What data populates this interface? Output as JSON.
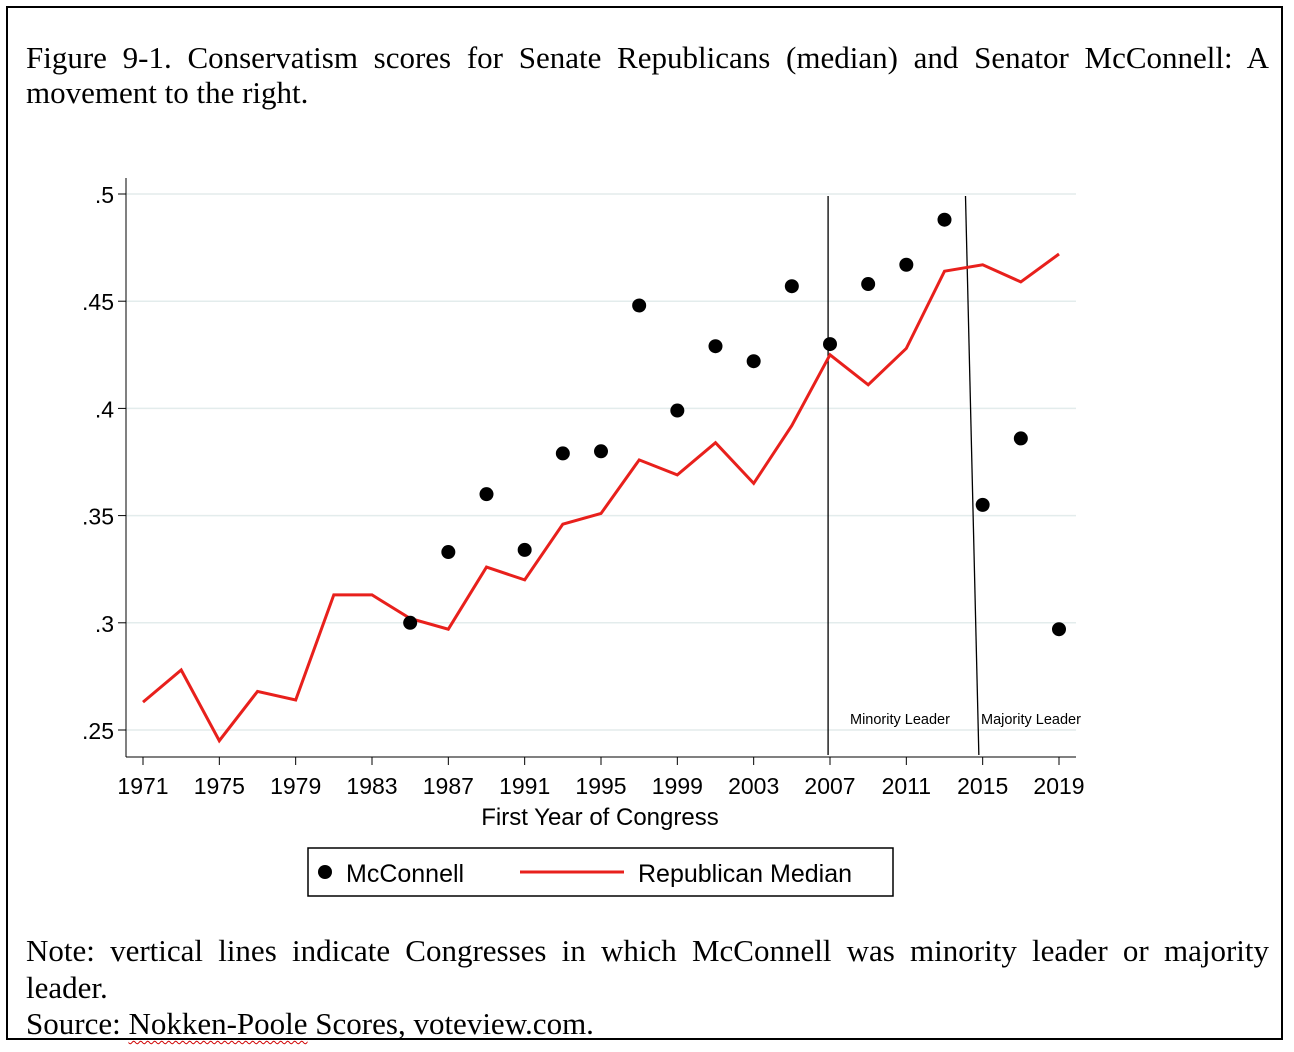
{
  "figure": {
    "caption": "Figure 9-1. Conservatism scores for Senate Republicans (median) and Senator McConnell: A movement to the right.",
    "note": "Note: vertical lines indicate Congresses in which McConnell was minority leader or majority leader.",
    "source_prefix": "Source: ",
    "source_link": "Nokken-Poole",
    "source_suffix": " Scores, voteview.com."
  },
  "chart_data": {
    "type": "scatter",
    "xlabel": "First Year of Congress",
    "ylabel": "",
    "xlim": [
      1971,
      2019
    ],
    "ylim": [
      0.25,
      0.5
    ],
    "x_ticks": [
      {
        "value": 1971,
        "label": "1971"
      },
      {
        "value": 1975,
        "label": "1975"
      },
      {
        "value": 1979,
        "label": "1979"
      },
      {
        "value": 1983,
        "label": "1983"
      },
      {
        "value": 1987,
        "label": "1987"
      },
      {
        "value": 1991,
        "label": "1991"
      },
      {
        "value": 1995,
        "label": "1995"
      },
      {
        "value": 1999,
        "label": "1999"
      },
      {
        "value": 2003,
        "label": "2003"
      },
      {
        "value": 2007,
        "label": "2007"
      },
      {
        "value": 2011,
        "label": "2011"
      },
      {
        "value": 2015,
        "label": "2015"
      },
      {
        "value": 2019,
        "label": "2019"
      }
    ],
    "y_ticks": [
      {
        "value": 0.25,
        "label": ".25"
      },
      {
        "value": 0.3,
        "label": ".3"
      },
      {
        "value": 0.35,
        "label": ".35"
      },
      {
        "value": 0.4,
        "label": ".4"
      },
      {
        "value": 0.45,
        "label": ".45"
      },
      {
        "value": 0.5,
        "label": ".5"
      }
    ],
    "grid": true,
    "legend_position": "bottom",
    "series": [
      {
        "name": "McConnell",
        "kind": "scatter",
        "color": "#000000",
        "points": [
          {
            "x": 1985,
            "y": 0.3
          },
          {
            "x": 1987,
            "y": 0.333
          },
          {
            "x": 1989,
            "y": 0.36
          },
          {
            "x": 1991,
            "y": 0.334
          },
          {
            "x": 1993,
            "y": 0.379
          },
          {
            "x": 1995,
            "y": 0.38
          },
          {
            "x": 1997,
            "y": 0.448
          },
          {
            "x": 1999,
            "y": 0.399
          },
          {
            "x": 2001,
            "y": 0.429
          },
          {
            "x": 2003,
            "y": 0.422
          },
          {
            "x": 2005,
            "y": 0.457
          },
          {
            "x": 2007,
            "y": 0.43
          },
          {
            "x": 2009,
            "y": 0.458
          },
          {
            "x": 2011,
            "y": 0.467
          },
          {
            "x": 2013,
            "y": 0.488
          },
          {
            "x": 2015,
            "y": 0.355
          },
          {
            "x": 2017,
            "y": 0.386
          },
          {
            "x": 2019,
            "y": 0.297
          }
        ]
      },
      {
        "name": "Republican Median",
        "kind": "line",
        "color": "#e8201c",
        "points": [
          {
            "x": 1971,
            "y": 0.263
          },
          {
            "x": 1973,
            "y": 0.278
          },
          {
            "x": 1975,
            "y": 0.245
          },
          {
            "x": 1977,
            "y": 0.268
          },
          {
            "x": 1979,
            "y": 0.264
          },
          {
            "x": 1981,
            "y": 0.313
          },
          {
            "x": 1983,
            "y": 0.313
          },
          {
            "x": 1985,
            "y": 0.302
          },
          {
            "x": 1987,
            "y": 0.297
          },
          {
            "x": 1989,
            "y": 0.326
          },
          {
            "x": 1991,
            "y": 0.32
          },
          {
            "x": 1993,
            "y": 0.346
          },
          {
            "x": 1995,
            "y": 0.351
          },
          {
            "x": 1997,
            "y": 0.376
          },
          {
            "x": 1999,
            "y": 0.369
          },
          {
            "x": 2001,
            "y": 0.384
          },
          {
            "x": 2003,
            "y": 0.365
          },
          {
            "x": 2005,
            "y": 0.392
          },
          {
            "x": 2007,
            "y": 0.425
          },
          {
            "x": 2009,
            "y": 0.411
          },
          {
            "x": 2011,
            "y": 0.428
          },
          {
            "x": 2013,
            "y": 0.464
          },
          {
            "x": 2015,
            "y": 0.467
          },
          {
            "x": 2017,
            "y": 0.459
          },
          {
            "x": 2019,
            "y": 0.472
          }
        ]
      }
    ],
    "vlines": [
      {
        "label": "Minority Leader",
        "x_top": 2006.9,
        "x_bottom": 2006.9
      },
      {
        "label": "Majority Leader",
        "x_top": 2014.1,
        "x_bottom": 2014.8
      }
    ]
  }
}
